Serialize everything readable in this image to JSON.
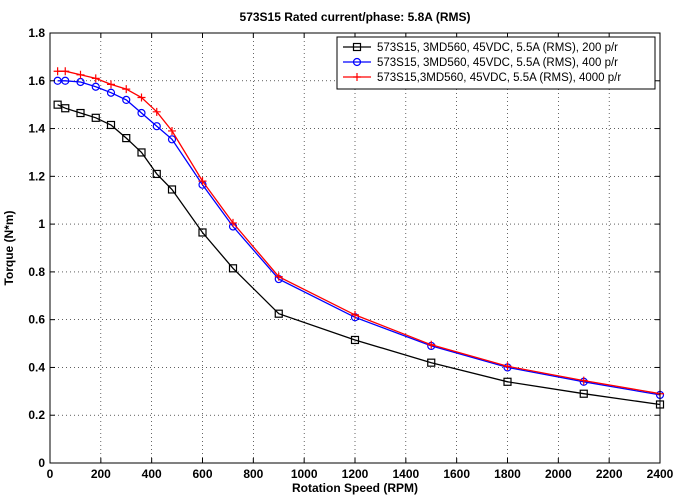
{
  "chart_data": {
    "type": "line",
    "title": "573S15 Rated current/phase: 5.8A (RMS)",
    "xlabel": "Rotation Speed (RPM)",
    "ylabel": "Torque (N*m)",
    "xlim": [
      0,
      2400
    ],
    "ylim": [
      0,
      1.8
    ],
    "xticks": [
      0,
      200,
      400,
      600,
      800,
      1000,
      1200,
      1400,
      1600,
      1800,
      2000,
      2200,
      2400
    ],
    "xtick_labels": [
      "0",
      "200",
      "400",
      "600",
      "800",
      "1000",
      "1200",
      "1400",
      "1600",
      "1800",
      "2000",
      "2200",
      "2400"
    ],
    "yticks": [
      0,
      0.2,
      0.4,
      0.6,
      0.8,
      1,
      1.2,
      1.4,
      1.6,
      1.8
    ],
    "ytick_labels": [
      "0",
      "0.2",
      "0.4",
      "0.6",
      "0.8",
      "1",
      "1.2",
      "1.4",
      "1.6",
      "1.8"
    ],
    "grid": true,
    "legend_position": "top-right",
    "series": [
      {
        "name": "573S15, 3MD560, 45VDC, 5.5A (RMS), 200 p/r",
        "color": "#000000",
        "marker": "square",
        "x": [
          30,
          60,
          120,
          180,
          240,
          300,
          360,
          420,
          480,
          600,
          720,
          900,
          1200,
          1500,
          1800,
          2100,
          2400
        ],
        "y": [
          1.5,
          1.485,
          1.465,
          1.445,
          1.415,
          1.36,
          1.3,
          1.21,
          1.145,
          0.965,
          0.815,
          0.625,
          0.515,
          0.42,
          0.34,
          0.29,
          0.245
        ]
      },
      {
        "name": "573S15, 3MD560, 45VDC, 5.5A (RMS), 400 p/r",
        "color": "#0000ff",
        "marker": "circle",
        "x": [
          30,
          60,
          120,
          180,
          240,
          300,
          360,
          420,
          480,
          600,
          720,
          900,
          1200,
          1500,
          1800,
          2100,
          2400
        ],
        "y": [
          1.6,
          1.6,
          1.595,
          1.575,
          1.55,
          1.52,
          1.465,
          1.41,
          1.355,
          1.165,
          0.99,
          0.77,
          0.61,
          0.49,
          0.4,
          0.34,
          0.285
        ]
      },
      {
        "name": "573S15,3MD560, 45VDC, 5.5A (RMS), 4000 p/r",
        "color": "#ff0000",
        "marker": "plus",
        "x": [
          30,
          60,
          120,
          180,
          240,
          300,
          360,
          420,
          480,
          600,
          720,
          900,
          1200,
          1500,
          1800,
          2100,
          2400
        ],
        "y": [
          1.64,
          1.64,
          1.625,
          1.61,
          1.585,
          1.565,
          1.53,
          1.47,
          1.39,
          1.18,
          1.005,
          0.78,
          0.62,
          0.495,
          0.405,
          0.345,
          0.29
        ]
      }
    ]
  }
}
